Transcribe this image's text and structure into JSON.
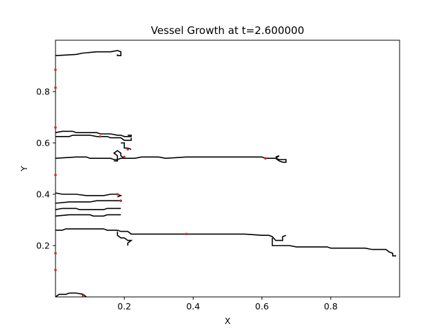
{
  "chart_data": {
    "type": "line",
    "title": "Vessel Growth at t=2.600000",
    "xlabel": "X",
    "ylabel": "Y",
    "xlim": [
      0.0,
      1.0
    ],
    "ylim": [
      0.0,
      1.0
    ],
    "x_ticks": [
      0.2,
      0.4,
      0.6,
      0.8
    ],
    "x_tick_labels": [
      "0.2",
      "0.4",
      "0.6",
      "0.8"
    ],
    "y_ticks": [
      0.2,
      0.4,
      0.6,
      0.8
    ],
    "y_tick_labels": [
      "0.2",
      "0.4",
      "0.6",
      "0.8"
    ],
    "grid": false,
    "legend": "none",
    "line_color": "#000000",
    "tip_color": "#d62728",
    "vessels": [
      {
        "points": [
          [
            0.0,
            0.94
          ],
          [
            0.06,
            0.945
          ],
          [
            0.08,
            0.95
          ],
          [
            0.12,
            0.955
          ],
          [
            0.16,
            0.955
          ],
          [
            0.18,
            0.96
          ],
          [
            0.19,
            0.955
          ],
          [
            0.19,
            0.94
          ],
          [
            0.18,
            0.94
          ],
          [
            0.18,
            0.945
          ]
        ]
      },
      {
        "points": [
          [
            0.0,
            0.64
          ],
          [
            0.02,
            0.645
          ],
          [
            0.05,
            0.645
          ],
          [
            0.06,
            0.64
          ],
          [
            0.12,
            0.64
          ],
          [
            0.13,
            0.635
          ],
          [
            0.16,
            0.635
          ],
          [
            0.18,
            0.63
          ],
          [
            0.19,
            0.63
          ],
          [
            0.2,
            0.625
          ],
          [
            0.22,
            0.625
          ],
          [
            0.22,
            0.63
          ],
          [
            0.21,
            0.63
          ]
        ]
      },
      {
        "points": [
          [
            0.0,
            0.625
          ],
          [
            0.04,
            0.625
          ],
          [
            0.05,
            0.63
          ],
          [
            0.1,
            0.63
          ],
          [
            0.12,
            0.625
          ],
          [
            0.15,
            0.625
          ],
          [
            0.16,
            0.62
          ],
          [
            0.19,
            0.62
          ],
          [
            0.2,
            0.61
          ],
          [
            0.22,
            0.61
          ],
          [
            0.22,
            0.62
          ]
        ]
      },
      {
        "points": [
          [
            0.0,
            0.54
          ],
          [
            0.06,
            0.545
          ],
          [
            0.09,
            0.545
          ],
          [
            0.1,
            0.54
          ],
          [
            0.16,
            0.54
          ],
          [
            0.17,
            0.535
          ],
          [
            0.18,
            0.535
          ],
          [
            0.19,
            0.54
          ],
          [
            0.23,
            0.54
          ],
          [
            0.25,
            0.545
          ],
          [
            0.3,
            0.545
          ],
          [
            0.32,
            0.54
          ],
          [
            0.38,
            0.545
          ],
          [
            0.5,
            0.545
          ],
          [
            0.6,
            0.545
          ],
          [
            0.61,
            0.54
          ],
          [
            0.64,
            0.54
          ],
          [
            0.65,
            0.535
          ],
          [
            0.67,
            0.535
          ],
          [
            0.67,
            0.525
          ],
          [
            0.66,
            0.525
          ],
          [
            0.65,
            0.53
          ],
          [
            0.64,
            0.54
          ],
          [
            0.65,
            0.55
          ],
          [
            0.64,
            0.545
          ]
        ]
      },
      {
        "points": [
          [
            0.19,
            0.6
          ],
          [
            0.2,
            0.6
          ],
          [
            0.2,
            0.58
          ],
          [
            0.21,
            0.58
          ],
          [
            0.22,
            0.575
          ]
        ]
      },
      {
        "points": [
          [
            0.17,
            0.53
          ],
          [
            0.18,
            0.53
          ],
          [
            0.18,
            0.55
          ],
          [
            0.17,
            0.56
          ],
          [
            0.18,
            0.57
          ],
          [
            0.19,
            0.56
          ],
          [
            0.19,
            0.55
          ],
          [
            0.2,
            0.54
          ]
        ]
      },
      {
        "points": [
          [
            0.0,
            0.405
          ],
          [
            0.02,
            0.4
          ],
          [
            0.06,
            0.4
          ],
          [
            0.09,
            0.395
          ],
          [
            0.14,
            0.395
          ],
          [
            0.16,
            0.4
          ],
          [
            0.18,
            0.4
          ],
          [
            0.19,
            0.395
          ],
          [
            0.18,
            0.39
          ]
        ]
      },
      {
        "points": [
          [
            0.0,
            0.365
          ],
          [
            0.04,
            0.37
          ],
          [
            0.1,
            0.37
          ],
          [
            0.12,
            0.375
          ],
          [
            0.19,
            0.375
          ],
          [
            0.19,
            0.37
          ]
        ]
      },
      {
        "points": [
          [
            0.0,
            0.34
          ],
          [
            0.02,
            0.345
          ],
          [
            0.06,
            0.345
          ],
          [
            0.07,
            0.34
          ],
          [
            0.14,
            0.34
          ],
          [
            0.15,
            0.345
          ],
          [
            0.19,
            0.345
          ]
        ]
      },
      {
        "points": [
          [
            0.0,
            0.315
          ],
          [
            0.04,
            0.32
          ],
          [
            0.1,
            0.32
          ],
          [
            0.11,
            0.315
          ],
          [
            0.14,
            0.315
          ],
          [
            0.15,
            0.32
          ],
          [
            0.19,
            0.32
          ]
        ]
      },
      {
        "points": [
          [
            0.0,
            0.26
          ],
          [
            0.02,
            0.26
          ],
          [
            0.03,
            0.265
          ],
          [
            0.14,
            0.265
          ],
          [
            0.15,
            0.26
          ],
          [
            0.18,
            0.26
          ],
          [
            0.19,
            0.255
          ],
          [
            0.21,
            0.255
          ],
          [
            0.22,
            0.245
          ],
          [
            0.27,
            0.245
          ],
          [
            0.3,
            0.245
          ],
          [
            0.4,
            0.245
          ],
          [
            0.5,
            0.245
          ],
          [
            0.55,
            0.245
          ],
          [
            0.6,
            0.24
          ],
          [
            0.62,
            0.24
          ],
          [
            0.63,
            0.235
          ],
          [
            0.64,
            0.22
          ],
          [
            0.66,
            0.22
          ],
          [
            0.66,
            0.235
          ],
          [
            0.67,
            0.24
          ]
        ]
      },
      {
        "points": [
          [
            0.18,
            0.255
          ],
          [
            0.18,
            0.24
          ],
          [
            0.19,
            0.23
          ],
          [
            0.2,
            0.23
          ],
          [
            0.21,
            0.22
          ],
          [
            0.22,
            0.22
          ],
          [
            0.21,
            0.21
          ],
          [
            0.21,
            0.2
          ]
        ]
      },
      {
        "points": [
          [
            0.63,
            0.23
          ],
          [
            0.63,
            0.215
          ],
          [
            0.63,
            0.2
          ],
          [
            0.68,
            0.2
          ],
          [
            0.7,
            0.195
          ],
          [
            0.79,
            0.195
          ],
          [
            0.8,
            0.19
          ],
          [
            0.9,
            0.19
          ],
          [
            0.92,
            0.185
          ],
          [
            0.96,
            0.185
          ],
          [
            0.97,
            0.175
          ],
          [
            0.98,
            0.17
          ],
          [
            0.98,
            0.16
          ],
          [
            0.99,
            0.16
          ]
        ]
      },
      {
        "points": [
          [
            0.0,
            0.0
          ],
          [
            0.01,
            0.01
          ],
          [
            0.03,
            0.01
          ],
          [
            0.04,
            0.015
          ],
          [
            0.06,
            0.015
          ],
          [
            0.08,
            0.01
          ],
          [
            0.09,
            0.0
          ]
        ]
      }
    ],
    "tips": [
      [
        0.0,
        0.885
      ],
      [
        0.0,
        0.815
      ],
      [
        0.0,
        0.66
      ],
      [
        0.0,
        0.475
      ],
      [
        0.0,
        0.17
      ],
      [
        0.0,
        0.105
      ],
      [
        0.13,
        0.625
      ],
      [
        0.21,
        0.575
      ],
      [
        0.2,
        0.545
      ],
      [
        0.61,
        0.54
      ],
      [
        0.18,
        0.4
      ],
      [
        0.19,
        0.375
      ],
      [
        0.38,
        0.245
      ],
      [
        0.08,
        0.005
      ]
    ]
  }
}
